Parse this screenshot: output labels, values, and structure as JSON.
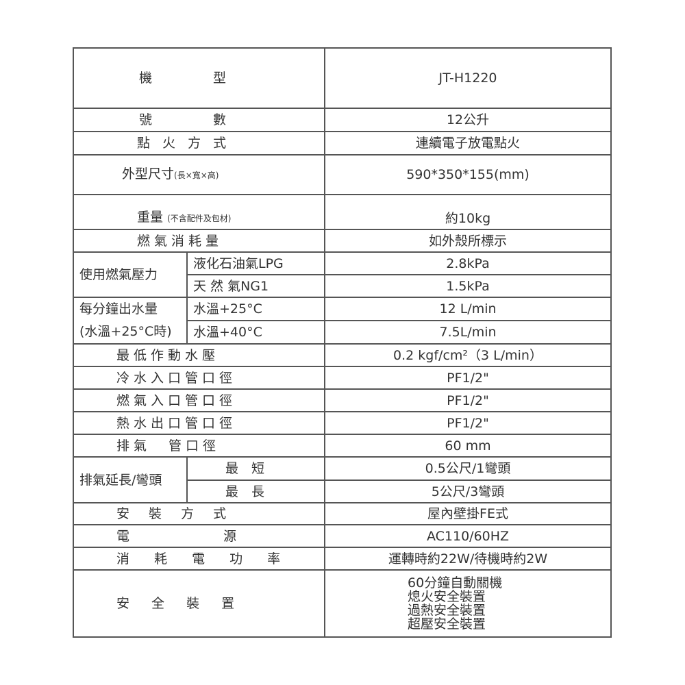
{
  "rows": [
    {
      "label": "機　　　型",
      "value": "JT-H1220"
    },
    {
      "label": "號　　　數",
      "value": "12公升"
    },
    {
      "label": "點 火 方 式",
      "value": "連續電子放電點火"
    },
    {
      "label": "外型尺寸",
      "label_note": "(長×寬×高)",
      "value": "590*350*155(mm)"
    },
    {
      "label": "重量",
      "label_note": "(不含配件及包材)",
      "value": "約10kg"
    },
    {
      "label": "燃氣消耗量",
      "value": "如外殼所標示"
    },
    {
      "label": "最低作動水壓",
      "value": "0.2 kgf/cm²（3 L/min）"
    },
    {
      "label": "冷水入口管口徑",
      "value": "PF1/2\""
    },
    {
      "label": "燃氣入口管口徑",
      "value": "PF1/2\""
    },
    {
      "label": "熱水出口管口徑",
      "value": "PF1/2\""
    },
    {
      "label": "排氣 管口徑",
      "value": "60 mm"
    },
    {
      "label": "安 裝 方 式",
      "value": "屋內壁掛FE式"
    },
    {
      "label": "電　　　源",
      "value": "AC110/60HZ"
    },
    {
      "label": "消 耗 電 功 率",
      "value": "運轉時約22W/待機時約2W"
    }
  ],
  "gas_pressure": {
    "label": "使用燃氣壓力",
    "sub": [
      {
        "label": "液化石油氣LPG",
        "value": "2.8kPa"
      },
      {
        "label": "天 然 氣NG1",
        "value": "1.5kPa"
      }
    ]
  },
  "water_output": {
    "label": "每分鐘出水量",
    "label2": "(水溫+25°C時)",
    "sub": [
      {
        "label": "水溫+25°C",
        "value": "12 L/min"
      },
      {
        "label": "水溫+40°C",
        "value": "7.5L/min"
      }
    ]
  },
  "exhaust_ext": {
    "label": "排氣延長/彎頭",
    "sub": [
      {
        "label": "最　短",
        "value": "0.5公尺/1彎頭"
      },
      {
        "label": "最　長",
        "value": "5公尺/3彎頭"
      }
    ]
  },
  "safety": {
    "label": "安 全 裝 置",
    "items": [
      "60分鐘自動關機",
      "熄火安全裝置",
      "過熱安全裝置",
      "超壓安全裝置"
    ]
  }
}
